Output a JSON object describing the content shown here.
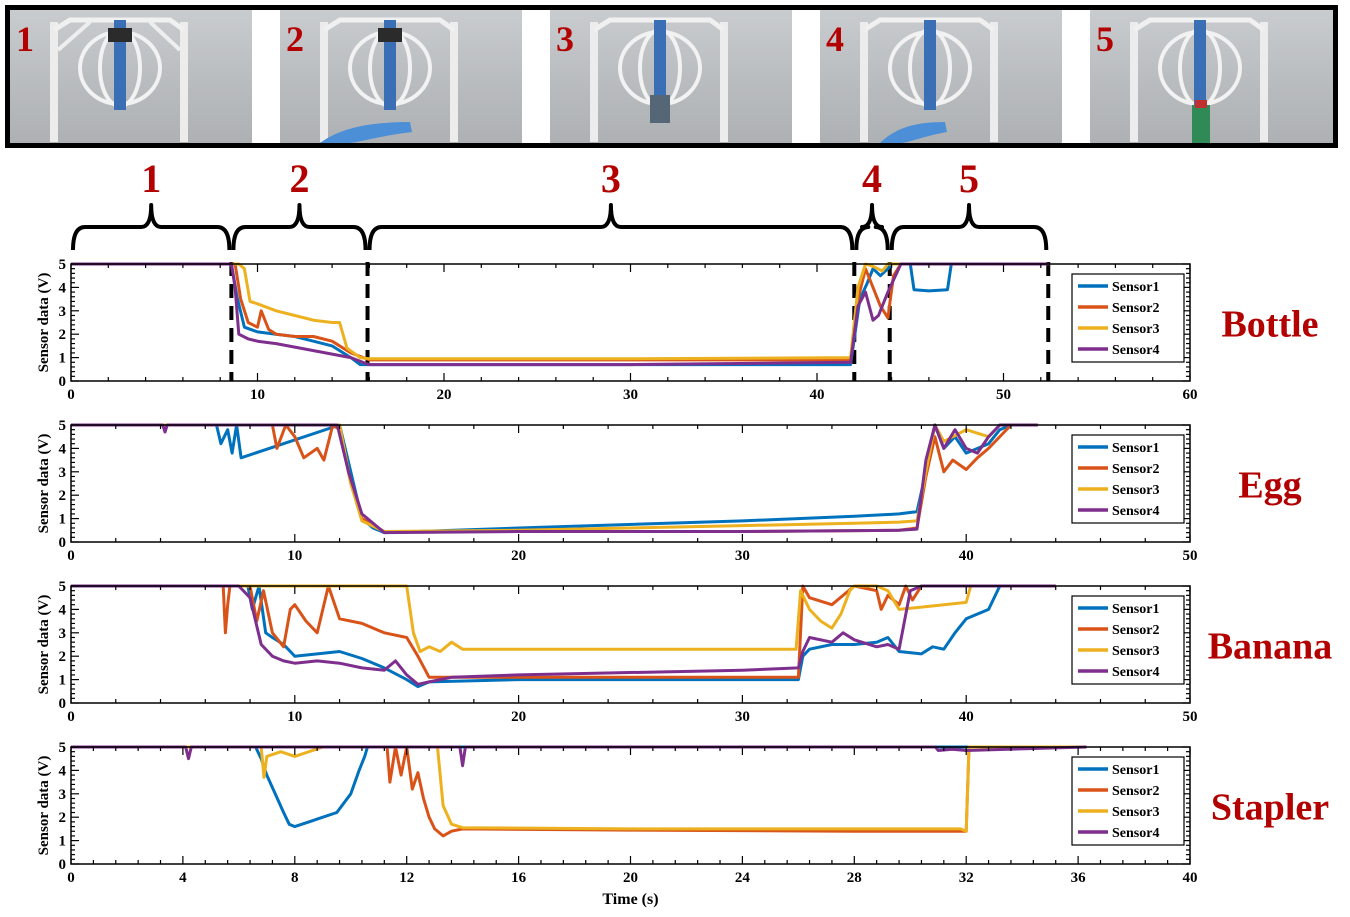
{
  "photo_frames": [
    {
      "label": "1"
    },
    {
      "label": "2"
    },
    {
      "label": "3"
    },
    {
      "label": "4"
    },
    {
      "label": "5"
    }
  ],
  "phases": [
    {
      "label": "1",
      "t_start": 0,
      "t_end": 8.6
    },
    {
      "label": "2",
      "t_start": 8.6,
      "t_end": 15.9
    },
    {
      "label": "3",
      "t_start": 15.9,
      "t_end": 42.0
    },
    {
      "label": "4",
      "t_start": 42.0,
      "t_end": 43.9
    },
    {
      "label": "5",
      "t_start": 43.9,
      "t_end": 52.4
    }
  ],
  "phase_dividers": [
    8.6,
    15.9,
    42.0,
    43.9,
    52.4
  ],
  "colors": {
    "Sensor1": "#0072bd",
    "Sensor2": "#d95319",
    "Sensor3": "#edb120",
    "Sensor4": "#7e2f8e",
    "label": "#b30000"
  },
  "chart_data": [
    {
      "type": "line",
      "object": "Bottle",
      "ylabel": "Sensor data (V)",
      "xlabel": "",
      "xlim": [
        0,
        60
      ],
      "ylim": [
        0,
        5
      ],
      "xticks": [
        0,
        10,
        20,
        30,
        40,
        50,
        60
      ],
      "yticks": [
        0,
        1,
        2,
        3,
        4,
        5
      ],
      "legend_position": "right",
      "series": [
        {
          "name": "Sensor1",
          "x": [
            0,
            8.6,
            8.9,
            9.3,
            10,
            11,
            12,
            13,
            14,
            15,
            15.5,
            16,
            20,
            30,
            41.8,
            42.3,
            42.7,
            43,
            43.4,
            43.8,
            44,
            45,
            45.2,
            46,
            47,
            47.2,
            52.4
          ],
          "y": [
            5,
            5,
            3.6,
            2.3,
            2.1,
            2.0,
            1.9,
            1.7,
            1.5,
            1.0,
            0.7,
            0.7,
            0.7,
            0.7,
            0.7,
            3.5,
            4.2,
            4.8,
            4.5,
            4.8,
            5,
            5,
            3.9,
            3.85,
            3.9,
            5,
            5
          ]
        },
        {
          "name": "Sensor2",
          "x": [
            0,
            8.8,
            9.1,
            9.5,
            10,
            10.2,
            10.6,
            11,
            12,
            13,
            14,
            15,
            16,
            20,
            30,
            41.8,
            42.2,
            42.6,
            43,
            43.4,
            43.8,
            44.1,
            44.5,
            52.4
          ],
          "y": [
            5,
            5,
            3.5,
            2.5,
            2.3,
            3.0,
            2.2,
            2.0,
            1.9,
            1.9,
            1.7,
            1.2,
            0.9,
            0.9,
            0.9,
            0.9,
            3.5,
            4.8,
            4.0,
            3.2,
            2.7,
            4.5,
            5,
            5
          ]
        },
        {
          "name": "Sensor3",
          "x": [
            0,
            9.0,
            9.3,
            9.6,
            10,
            11,
            12,
            13,
            14,
            14.4,
            14.8,
            15.5,
            16,
            20,
            30,
            41.8,
            42.2,
            42.6,
            43,
            43.5,
            43.8,
            44.5,
            52.4
          ],
          "y": [
            5,
            5,
            4.8,
            3.4,
            3.3,
            3.0,
            2.8,
            2.6,
            2.5,
            2.5,
            1.4,
            1.0,
            0.95,
            0.95,
            0.95,
            1.0,
            4.0,
            5,
            4.9,
            4.7,
            5,
            5,
            5
          ]
        },
        {
          "name": "Sensor4",
          "x": [
            0,
            8.6,
            8.8,
            9.0,
            9.5,
            10,
            11,
            12,
            13,
            14,
            15,
            15.8,
            16,
            20,
            30,
            41.8,
            42.2,
            42.6,
            43,
            43.3,
            43.8,
            44.5,
            52.4
          ],
          "y": [
            5,
            5,
            4.0,
            2.0,
            1.8,
            1.7,
            1.6,
            1.45,
            1.3,
            1.15,
            1.0,
            0.75,
            0.7,
            0.7,
            0.7,
            0.8,
            3.2,
            3.8,
            2.6,
            2.8,
            3.8,
            5,
            5
          ]
        }
      ]
    },
    {
      "type": "line",
      "object": "Egg",
      "ylabel": "Sensor data (V)",
      "xlabel": "",
      "xlim": [
        0,
        50
      ],
      "ylim": [
        0,
        5
      ],
      "xticks": [
        0,
        10,
        20,
        30,
        40,
        50
      ],
      "yticks": [
        0,
        1,
        2,
        3,
        4,
        5
      ],
      "legend_position": "right",
      "series": [
        {
          "name": "Sensor1",
          "x": [
            0,
            6.5,
            6.7,
            7,
            7.2,
            7.4,
            7.6,
            12,
            12.5,
            13,
            13.5,
            14,
            20,
            30,
            35,
            37,
            37.8,
            38.2,
            38.6,
            39,
            39.5,
            40,
            41,
            41.5,
            42,
            43.2
          ],
          "y": [
            5,
            5,
            4.2,
            4.8,
            3.8,
            5,
            3.6,
            5,
            3.0,
            1.0,
            0.6,
            0.4,
            0.6,
            0.9,
            1.1,
            1.2,
            1.3,
            3.0,
            5,
            4.0,
            4.5,
            3.8,
            4.2,
            4.8,
            5,
            5
          ]
        },
        {
          "name": "Sensor2",
          "x": [
            0,
            9,
            9.2,
            9.6,
            10,
            10.4,
            11,
            11.3,
            11.7,
            12,
            12.5,
            13,
            14,
            20,
            30,
            37,
            37.8,
            38.2,
            38.6,
            39,
            39.4,
            40,
            40.5,
            41,
            42,
            43.2
          ],
          "y": [
            5,
            5,
            4.0,
            5,
            4.5,
            3.6,
            4.0,
            3.5,
            5,
            4.8,
            2.5,
            1.0,
            0.45,
            0.45,
            0.45,
            0.5,
            0.6,
            2.8,
            4.5,
            3.0,
            3.5,
            3.1,
            3.6,
            4.0,
            5,
            5
          ]
        },
        {
          "name": "Sensor3",
          "x": [
            0,
            12,
            12.5,
            13,
            14,
            20,
            30,
            35,
            37,
            37.8,
            38.2,
            38.6,
            39,
            40,
            41,
            41.5,
            43.2
          ],
          "y": [
            5,
            5,
            2.5,
            0.9,
            0.45,
            0.5,
            0.7,
            0.8,
            0.85,
            0.9,
            3.0,
            5,
            4.3,
            4.8,
            4.5,
            5,
            5
          ]
        },
        {
          "name": "Sensor4",
          "x": [
            0,
            4.1,
            4.2,
            4.3,
            11.9,
            12.4,
            13,
            14,
            20,
            30,
            37,
            37.8,
            38.2,
            38.6,
            39,
            39.5,
            40,
            40.5,
            41,
            41.5,
            43.2
          ],
          "y": [
            5,
            5,
            4.7,
            5,
            5,
            3.0,
            1.2,
            0.4,
            0.45,
            0.45,
            0.5,
            0.55,
            3.5,
            5,
            4.0,
            4.8,
            4.0,
            3.8,
            4.5,
            5,
            5
          ]
        }
      ]
    },
    {
      "type": "line",
      "object": "Banana",
      "ylabel": "Sensor data (V)",
      "xlabel": "",
      "xlim": [
        0,
        50
      ],
      "ylim": [
        0,
        5
      ],
      "xticks": [
        0,
        10,
        20,
        30,
        40,
        50
      ],
      "yticks": [
        0,
        1,
        2,
        3,
        4,
        5
      ],
      "legend_position": "right",
      "series": [
        {
          "name": "Sensor1",
          "x": [
            0,
            7.9,
            8.1,
            8.4,
            8.7,
            9,
            9.5,
            10,
            11,
            12,
            13,
            14,
            15,
            15.5,
            16,
            20,
            30,
            32.5,
            32.7,
            33,
            34,
            35,
            36,
            36.5,
            37,
            38,
            38.5,
            39,
            39.5,
            40,
            41,
            41.5,
            44
          ],
          "y": [
            5,
            5,
            4.0,
            5,
            3.0,
            2.8,
            2.5,
            2.0,
            2.1,
            2.2,
            1.9,
            1.5,
            1.0,
            0.7,
            0.9,
            1.0,
            1.0,
            1.0,
            2.0,
            2.3,
            2.5,
            2.5,
            2.6,
            2.8,
            2.2,
            2.1,
            2.4,
            2.3,
            3.0,
            3.6,
            4.0,
            5,
            5
          ]
        },
        {
          "name": "Sensor2",
          "x": [
            0,
            6.8,
            6.9,
            7.0,
            7.1,
            8,
            8.3,
            8.6,
            9,
            9.5,
            9.8,
            10,
            10.5,
            11,
            11.5,
            12,
            13,
            14,
            15,
            15.5,
            16,
            17,
            20,
            30,
            32.5,
            32.7,
            33,
            34,
            35,
            36,
            36.2,
            36.5,
            37,
            37.3,
            37.6,
            38,
            44
          ],
          "y": [
            5,
            5,
            3.0,
            4.2,
            5,
            5,
            3.5,
            4.8,
            3.0,
            2.4,
            4.0,
            4.2,
            3.5,
            3.0,
            5,
            3.6,
            3.4,
            3.0,
            2.8,
            2.0,
            1.1,
            1.1,
            1.1,
            1.1,
            1.1,
            5,
            4.5,
            4.2,
            5,
            4.8,
            4.0,
            4.6,
            4.2,
            5,
            4.4,
            5,
            5
          ]
        },
        {
          "name": "Sensor3",
          "x": [
            0,
            15,
            15.3,
            15.6,
            16,
            16.5,
            17,
            17.5,
            20,
            30,
            32.4,
            32.6,
            33,
            33.5,
            34,
            34.4,
            34.8,
            35,
            36,
            36.5,
            37,
            38,
            39,
            40,
            40.2,
            44
          ],
          "y": [
            5,
            5,
            3.0,
            2.2,
            2.4,
            2.2,
            2.6,
            2.3,
            2.3,
            2.3,
            2.3,
            4.8,
            4.0,
            3.5,
            3.2,
            3.8,
            4.8,
            5,
            5,
            4.8,
            4.0,
            4.1,
            4.2,
            4.3,
            5,
            5
          ]
        },
        {
          "name": "Sensor4",
          "x": [
            0,
            7.5,
            8,
            8.5,
            9,
            9.5,
            10,
            11,
            12,
            13,
            14,
            14.5,
            15,
            15.5,
            16,
            17,
            20,
            30,
            32.5,
            32.7,
            33,
            34,
            34.5,
            35,
            36,
            36.5,
            37,
            37.5,
            38,
            44
          ],
          "y": [
            5,
            5,
            4.5,
            2.5,
            2.0,
            1.8,
            1.7,
            1.8,
            1.7,
            1.5,
            1.4,
            1.8,
            1.2,
            0.8,
            0.9,
            1.1,
            1.2,
            1.4,
            1.5,
            2.2,
            2.8,
            2.6,
            3.0,
            2.7,
            2.4,
            2.5,
            2.3,
            4.8,
            5,
            5
          ]
        }
      ]
    },
    {
      "type": "line",
      "object": "Stapler",
      "ylabel": "Sensor data (V)",
      "xlabel": "Time (s)",
      "xlim": [
        0,
        40
      ],
      "ylim": [
        0,
        5
      ],
      "xticks": [
        0,
        4,
        8,
        12,
        16,
        20,
        24,
        28,
        32,
        36,
        40
      ],
      "yticks": [
        0,
        1,
        2,
        3,
        4,
        5
      ],
      "legend_position": "right",
      "series": [
        {
          "name": "Sensor1",
          "x": [
            0,
            6.6,
            6.8,
            7,
            7.3,
            7.6,
            7.8,
            8,
            8.5,
            9,
            9.5,
            10,
            10.3,
            10.5,
            10.6,
            36.3
          ],
          "y": [
            5,
            5,
            4.5,
            3.8,
            3.0,
            2.2,
            1.7,
            1.6,
            1.8,
            2.0,
            2.2,
            3.0,
            4.0,
            4.6,
            5,
            5
          ]
        },
        {
          "name": "Sensor2",
          "x": [
            0,
            11.3,
            11.4,
            11.6,
            11.8,
            12,
            12.2,
            12.4,
            12.6,
            12.8,
            13,
            13.3,
            13.6,
            14,
            20,
            28,
            32,
            32.1,
            32.2,
            36.3
          ],
          "y": [
            5,
            5,
            3.5,
            5,
            3.8,
            5,
            3.2,
            3.9,
            2.8,
            2.0,
            1.5,
            1.2,
            1.4,
            1.5,
            1.45,
            1.4,
            1.4,
            5,
            5,
            5
          ]
        },
        {
          "name": "Sensor3",
          "x": [
            0,
            6.8,
            6.9,
            7.0,
            7.5,
            8,
            9,
            13.1,
            13.3,
            13.6,
            14,
            20,
            28,
            31.8,
            32,
            32.1,
            36.3
          ],
          "y": [
            5,
            5,
            3.7,
            4.6,
            4.8,
            4.6,
            5,
            5,
            2.5,
            1.7,
            1.55,
            1.5,
            1.5,
            1.5,
            1.4,
            5,
            5
          ]
        },
        {
          "name": "Sensor4",
          "x": [
            0,
            4.1,
            4.2,
            4.3,
            13.9,
            14.0,
            14.1,
            30.9,
            31.0,
            31.5,
            32.0,
            36.3
          ],
          "y": [
            5,
            5,
            4.5,
            5,
            5,
            4.2,
            5,
            5,
            4.85,
            4.9,
            4.85,
            5
          ]
        }
      ]
    }
  ]
}
